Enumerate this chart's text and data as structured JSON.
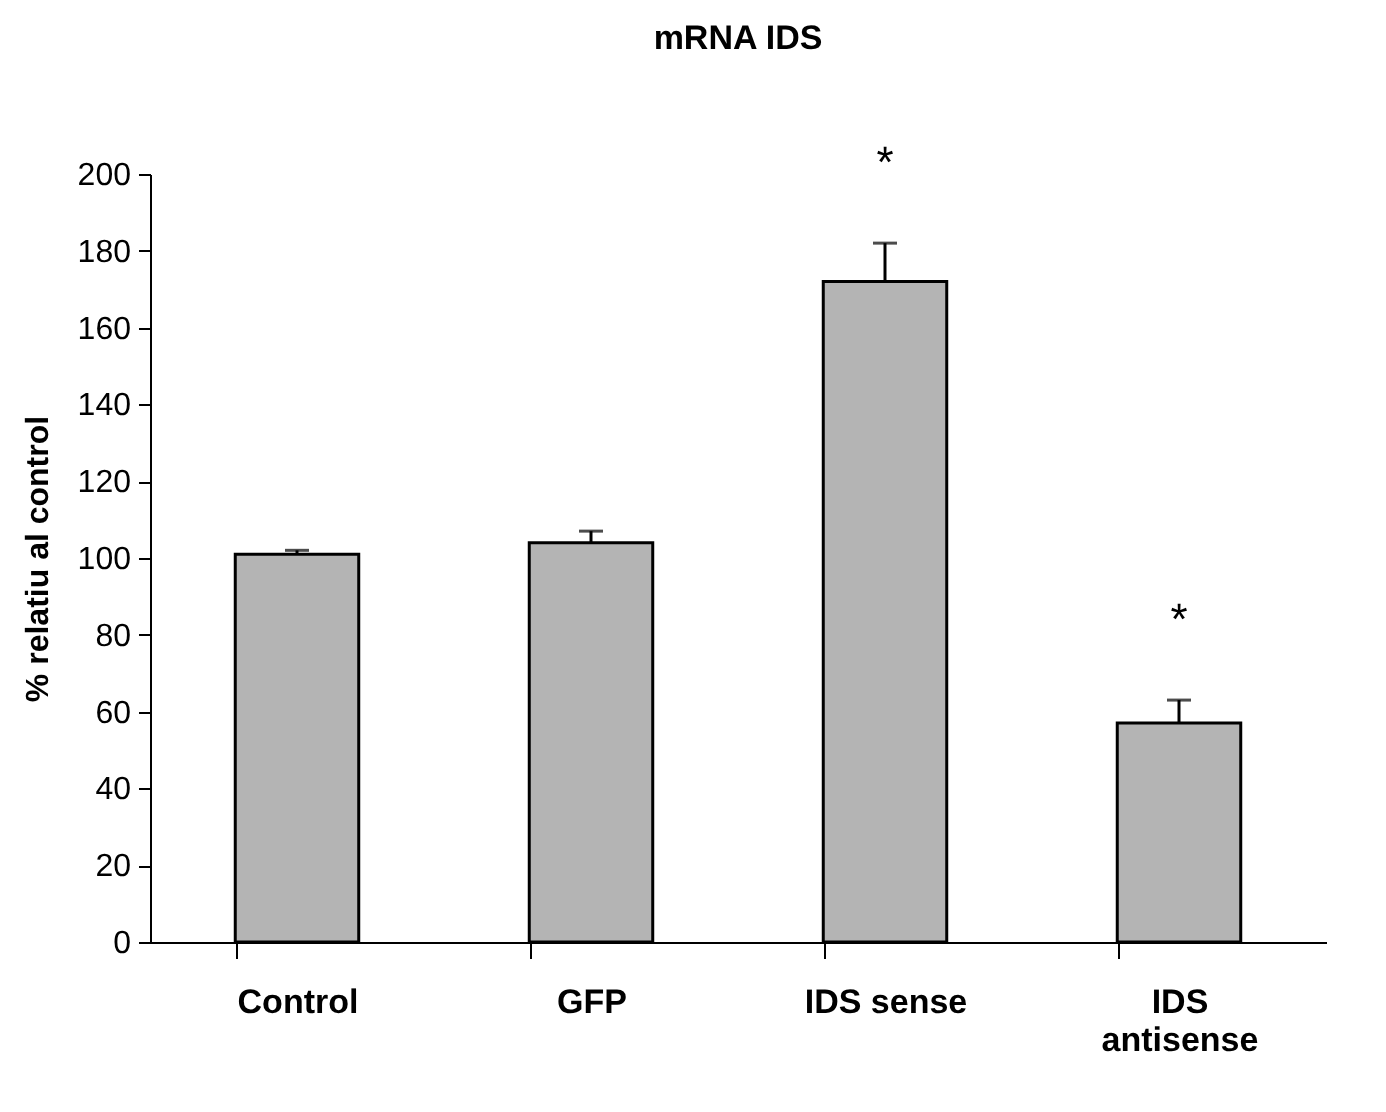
{
  "chart_data": {
    "type": "bar",
    "title": "mRNA IDS",
    "ylabel": "% relatiu al control",
    "categories": [
      "Control",
      "GFP",
      "IDS sense",
      "IDS antisense"
    ],
    "values": [
      101,
      104,
      172,
      57
    ],
    "errors": [
      [
        101,
        102
      ],
      [
        104,
        107
      ],
      [
        172,
        182
      ],
      [
        57,
        63
      ]
    ],
    "color": "#b4b4b4",
    "ylim": [
      0,
      200
    ],
    "yticks": [
      0,
      20,
      40,
      60,
      80,
      100,
      120,
      140,
      160,
      180,
      200
    ],
    "grid": false,
    "annotations": [
      {
        "text": "*",
        "x": "IDS sense",
        "y": 182
      },
      {
        "text": "*",
        "x": "IDS antisense",
        "y": 63
      }
    ]
  }
}
